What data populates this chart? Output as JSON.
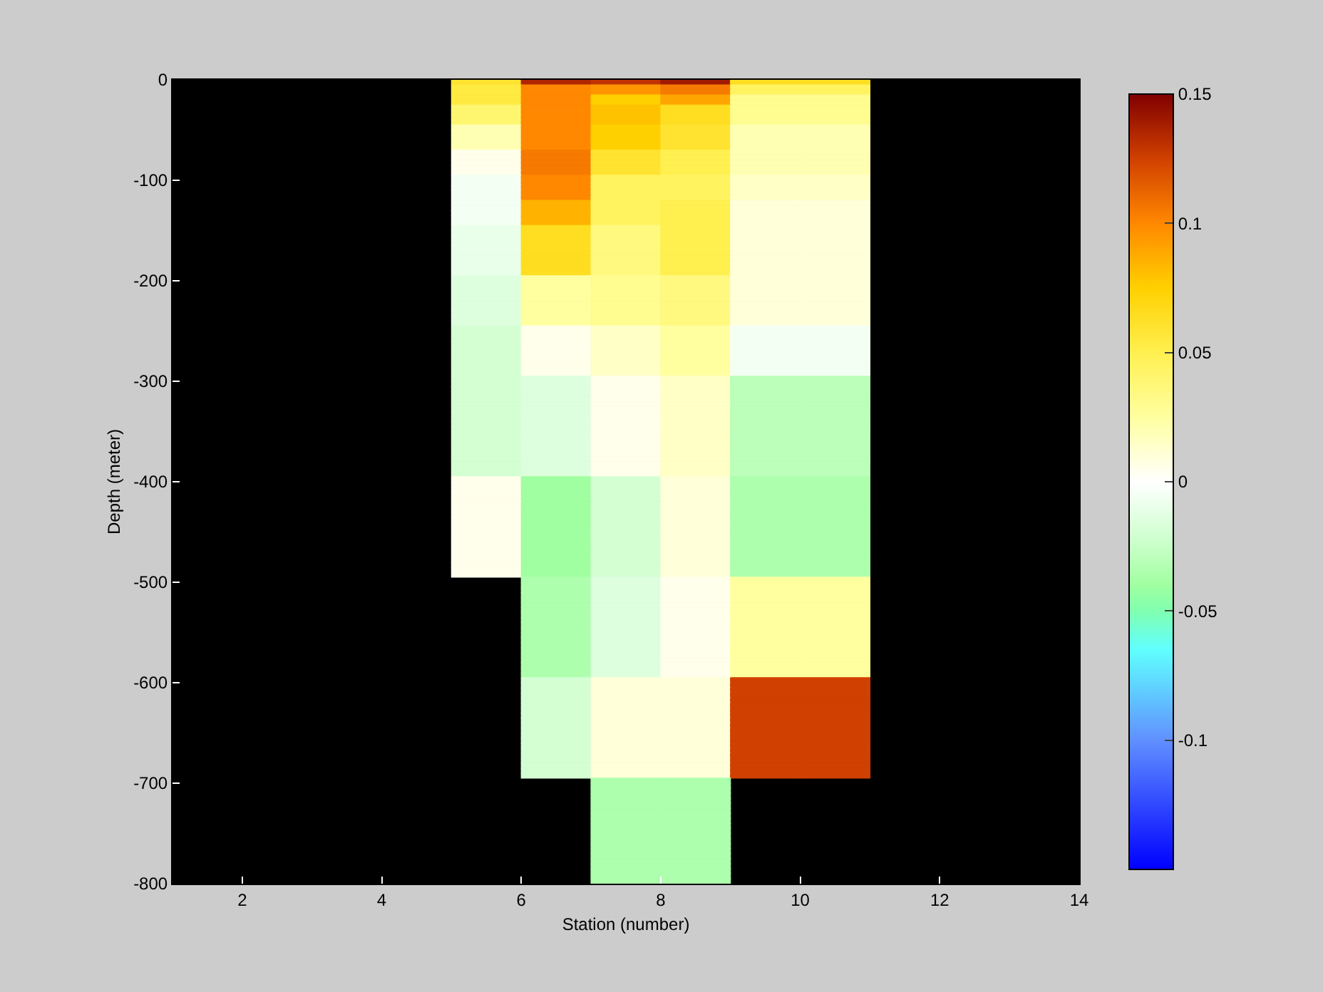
{
  "chart_data": {
    "type": "heatmap",
    "xlabel": "Station (number)",
    "ylabel": "Depth (meter)",
    "cells": [
      [
        null,
        null,
        null,
        null,
        0.06,
        0.135,
        0.13,
        0.14,
        0.065,
        0.065,
        null,
        null,
        null
      ],
      [
        null,
        null,
        null,
        null,
        0.055,
        0.1,
        0.095,
        0.105,
        0.045,
        0.045,
        null,
        null,
        null
      ],
      [
        null,
        null,
        null,
        null,
        0.055,
        0.1,
        0.095,
        0.105,
        0.045,
        0.045,
        null,
        null,
        null
      ],
      [
        null,
        null,
        null,
        null,
        0.055,
        0.1,
        0.075,
        0.09,
        0.03,
        0.03,
        null,
        null,
        null
      ],
      [
        null,
        null,
        null,
        null,
        0.055,
        0.1,
        0.075,
        0.09,
        0.03,
        0.03,
        null,
        null,
        null
      ],
      [
        null,
        null,
        null,
        null,
        0.04,
        0.1,
        0.08,
        0.065,
        0.03,
        0.03,
        null,
        null,
        null
      ],
      [
        null,
        null,
        null,
        null,
        0.04,
        0.1,
        0.08,
        0.065,
        0.03,
        0.03,
        null,
        null,
        null
      ],
      [
        null,
        null,
        null,
        null,
        0.04,
        0.1,
        0.08,
        0.065,
        0.03,
        0.03,
        null,
        null,
        null
      ],
      [
        null,
        null,
        null,
        null,
        0.04,
        0.1,
        0.08,
        0.065,
        0.03,
        0.03,
        null,
        null,
        null
      ],
      [
        null,
        null,
        null,
        null,
        0.02,
        0.1,
        0.075,
        0.06,
        0.02,
        0.02,
        null,
        null,
        null
      ],
      [
        null,
        null,
        null,
        null,
        0.02,
        0.1,
        0.075,
        0.06,
        0.02,
        0.02,
        null,
        null,
        null
      ],
      [
        null,
        null,
        null,
        null,
        0.02,
        0.1,
        0.075,
        0.06,
        0.02,
        0.02,
        null,
        null,
        null
      ],
      [
        null,
        null,
        null,
        null,
        0.02,
        0.1,
        0.075,
        0.06,
        0.02,
        0.02,
        null,
        null,
        null
      ],
      [
        null,
        null,
        null,
        null,
        0.02,
        0.1,
        0.075,
        0.06,
        0.02,
        0.02,
        null,
        null,
        null
      ],
      [
        null,
        null,
        null,
        null,
        0.005,
        0.105,
        0.06,
        0.05,
        0.02,
        0.02,
        null,
        null,
        null
      ],
      [
        null,
        null,
        null,
        null,
        0.005,
        0.105,
        0.06,
        0.05,
        0.02,
        0.02,
        null,
        null,
        null
      ],
      [
        null,
        null,
        null,
        null,
        0.005,
        0.105,
        0.06,
        0.05,
        0.02,
        0.02,
        null,
        null,
        null
      ],
      [
        null,
        null,
        null,
        null,
        0.005,
        0.105,
        0.06,
        0.05,
        0.02,
        0.02,
        null,
        null,
        null
      ],
      [
        null,
        null,
        null,
        null,
        0.005,
        0.105,
        0.06,
        0.05,
        0.02,
        0.02,
        null,
        null,
        null
      ],
      [
        null,
        null,
        null,
        null,
        -0.005,
        0.1,
        0.045,
        0.045,
        0.015,
        0.015,
        null,
        null,
        null
      ],
      [
        null,
        null,
        null,
        null,
        -0.005,
        0.1,
        0.045,
        0.045,
        0.015,
        0.015,
        null,
        null,
        null
      ],
      [
        null,
        null,
        null,
        null,
        -0.005,
        0.1,
        0.045,
        0.045,
        0.015,
        0.015,
        null,
        null,
        null
      ],
      [
        null,
        null,
        null,
        null,
        -0.005,
        0.1,
        0.045,
        0.045,
        0.015,
        0.015,
        null,
        null,
        null
      ],
      [
        null,
        null,
        null,
        null,
        -0.005,
        0.1,
        0.045,
        0.045,
        0.015,
        0.015,
        null,
        null,
        null
      ],
      [
        null,
        null,
        null,
        null,
        -0.005,
        0.085,
        0.045,
        0.05,
        0.01,
        0.01,
        null,
        null,
        null
      ],
      [
        null,
        null,
        null,
        null,
        -0.005,
        0.085,
        0.045,
        0.05,
        0.01,
        0.01,
        null,
        null,
        null
      ],
      [
        null,
        null,
        null,
        null,
        -0.005,
        0.085,
        0.045,
        0.05,
        0.01,
        0.01,
        null,
        null,
        null
      ],
      [
        null,
        null,
        null,
        null,
        -0.005,
        0.085,
        0.045,
        0.05,
        0.01,
        0.01,
        null,
        null,
        null
      ],
      [
        null,
        null,
        null,
        null,
        -0.005,
        0.085,
        0.045,
        0.05,
        0.01,
        0.01,
        null,
        null,
        null
      ],
      [
        null,
        null,
        null,
        null,
        -0.01,
        0.065,
        0.035,
        0.05,
        0.01,
        0.01,
        null,
        null,
        null
      ],
      [
        null,
        null,
        null,
        null,
        -0.01,
        0.065,
        0.035,
        0.05,
        0.01,
        0.01,
        null,
        null,
        null
      ],
      [
        null,
        null,
        null,
        null,
        -0.01,
        0.065,
        0.035,
        0.05,
        0.01,
        0.01,
        null,
        null,
        null
      ],
      [
        null,
        null,
        null,
        null,
        -0.01,
        0.065,
        0.035,
        0.05,
        0.01,
        0.01,
        null,
        null,
        null
      ],
      [
        null,
        null,
        null,
        null,
        -0.01,
        0.065,
        0.035,
        0.05,
        0.01,
        0.01,
        null,
        null,
        null
      ],
      [
        null,
        null,
        null,
        null,
        -0.01,
        0.065,
        0.035,
        0.05,
        0.01,
        0.01,
        null,
        null,
        null
      ],
      [
        null,
        null,
        null,
        null,
        -0.01,
        0.065,
        0.035,
        0.05,
        0.01,
        0.01,
        null,
        null,
        null
      ],
      [
        null,
        null,
        null,
        null,
        -0.01,
        0.065,
        0.035,
        0.05,
        0.01,
        0.01,
        null,
        null,
        null
      ],
      [
        null,
        null,
        null,
        null,
        -0.01,
        0.065,
        0.035,
        0.05,
        0.01,
        0.01,
        null,
        null,
        null
      ],
      [
        null,
        null,
        null,
        null,
        -0.01,
        0.065,
        0.035,
        0.05,
        0.01,
        0.01,
        null,
        null,
        null
      ],
      [
        null,
        null,
        null,
        null,
        -0.015,
        0.025,
        0.03,
        0.035,
        0.01,
        0.01,
        null,
        null,
        null
      ],
      [
        null,
        null,
        null,
        null,
        -0.015,
        0.025,
        0.03,
        0.035,
        0.01,
        0.01,
        null,
        null,
        null
      ],
      [
        null,
        null,
        null,
        null,
        -0.015,
        0.025,
        0.03,
        0.035,
        0.01,
        0.01,
        null,
        null,
        null
      ],
      [
        null,
        null,
        null,
        null,
        -0.015,
        0.025,
        0.03,
        0.035,
        0.01,
        0.01,
        null,
        null,
        null
      ],
      [
        null,
        null,
        null,
        null,
        -0.015,
        0.025,
        0.03,
        0.035,
        0.01,
        0.01,
        null,
        null,
        null
      ],
      [
        null,
        null,
        null,
        null,
        -0.015,
        0.025,
        0.03,
        0.035,
        0.01,
        0.01,
        null,
        null,
        null
      ],
      [
        null,
        null,
        null,
        null,
        -0.015,
        0.025,
        0.03,
        0.035,
        0.01,
        0.01,
        null,
        null,
        null
      ],
      [
        null,
        null,
        null,
        null,
        -0.015,
        0.025,
        0.03,
        0.035,
        0.01,
        0.01,
        null,
        null,
        null
      ],
      [
        null,
        null,
        null,
        null,
        -0.015,
        0.025,
        0.03,
        0.035,
        0.01,
        0.01,
        null,
        null,
        null
      ],
      [
        null,
        null,
        null,
        null,
        -0.015,
        0.025,
        0.03,
        0.035,
        0.01,
        0.01,
        null,
        null,
        null
      ],
      [
        null,
        null,
        null,
        null,
        -0.02,
        0.005,
        0.015,
        0.025,
        -0.005,
        -0.005,
        null,
        null,
        null
      ],
      [
        null,
        null,
        null,
        null,
        -0.02,
        0.005,
        0.015,
        0.025,
        -0.005,
        -0.005,
        null,
        null,
        null
      ],
      [
        null,
        null,
        null,
        null,
        -0.02,
        0.005,
        0.015,
        0.025,
        -0.005,
        -0.005,
        null,
        null,
        null
      ],
      [
        null,
        null,
        null,
        null,
        -0.02,
        0.005,
        0.015,
        0.025,
        -0.005,
        -0.005,
        null,
        null,
        null
      ],
      [
        null,
        null,
        null,
        null,
        -0.02,
        0.005,
        0.015,
        0.025,
        -0.005,
        -0.005,
        null,
        null,
        null
      ],
      [
        null,
        null,
        null,
        null,
        -0.02,
        0.005,
        0.015,
        0.025,
        -0.005,
        -0.005,
        null,
        null,
        null
      ],
      [
        null,
        null,
        null,
        null,
        -0.02,
        0.005,
        0.015,
        0.025,
        -0.005,
        -0.005,
        null,
        null,
        null
      ],
      [
        null,
        null,
        null,
        null,
        -0.02,
        0.005,
        0.015,
        0.025,
        -0.005,
        -0.005,
        null,
        null,
        null
      ],
      [
        null,
        null,
        null,
        null,
        -0.02,
        0.005,
        0.015,
        0.025,
        -0.005,
        -0.005,
        null,
        null,
        null
      ],
      [
        null,
        null,
        null,
        null,
        -0.02,
        0.005,
        0.015,
        0.025,
        -0.005,
        -0.005,
        null,
        null,
        null
      ],
      [
        null,
        null,
        null,
        null,
        -0.02,
        -0.015,
        0.005,
        0.015,
        -0.03,
        -0.03,
        null,
        null,
        null
      ],
      [
        null,
        null,
        null,
        null,
        -0.02,
        -0.015,
        0.005,
        0.015,
        -0.03,
        -0.03,
        null,
        null,
        null
      ],
      [
        null,
        null,
        null,
        null,
        -0.02,
        -0.015,
        0.005,
        0.015,
        -0.03,
        -0.03,
        null,
        null,
        null
      ],
      [
        null,
        null,
        null,
        null,
        -0.02,
        -0.015,
        0.005,
        0.015,
        -0.03,
        -0.03,
        null,
        null,
        null
      ],
      [
        null,
        null,
        null,
        null,
        -0.02,
        -0.015,
        0.005,
        0.015,
        -0.03,
        -0.03,
        null,
        null,
        null
      ],
      [
        null,
        null,
        null,
        null,
        -0.02,
        -0.015,
        0.005,
        0.015,
        -0.03,
        -0.03,
        null,
        null,
        null
      ],
      [
        null,
        null,
        null,
        null,
        -0.02,
        -0.015,
        0.005,
        0.015,
        -0.03,
        -0.03,
        null,
        null,
        null
      ],
      [
        null,
        null,
        null,
        null,
        -0.02,
        -0.015,
        0.005,
        0.015,
        -0.03,
        -0.03,
        null,
        null,
        null
      ],
      [
        null,
        null,
        null,
        null,
        -0.02,
        -0.015,
        0.005,
        0.015,
        -0.03,
        -0.03,
        null,
        null,
        null
      ],
      [
        null,
        null,
        null,
        null,
        -0.02,
        -0.015,
        0.005,
        0.015,
        -0.03,
        -0.03,
        null,
        null,
        null
      ],
      [
        null,
        null,
        null,
        null,
        -0.02,
        -0.015,
        0.005,
        0.015,
        -0.03,
        -0.03,
        null,
        null,
        null
      ],
      [
        null,
        null,
        null,
        null,
        -0.02,
        -0.015,
        0.005,
        0.015,
        -0.03,
        -0.03,
        null,
        null,
        null
      ],
      [
        null,
        null,
        null,
        null,
        -0.02,
        -0.015,
        0.005,
        0.015,
        -0.03,
        -0.03,
        null,
        null,
        null
      ],
      [
        null,
        null,
        null,
        null,
        -0.02,
        -0.015,
        0.005,
        0.015,
        -0.03,
        -0.03,
        null,
        null,
        null
      ],
      [
        null,
        null,
        null,
        null,
        -0.02,
        -0.015,
        0.005,
        0.015,
        -0.03,
        -0.03,
        null,
        null,
        null
      ],
      [
        null,
        null,
        null,
        null,
        -0.02,
        -0.015,
        0.005,
        0.015,
        -0.03,
        -0.03,
        null,
        null,
        null
      ],
      [
        null,
        null,
        null,
        null,
        -0.02,
        -0.015,
        0.005,
        0.015,
        -0.03,
        -0.03,
        null,
        null,
        null
      ],
      [
        null,
        null,
        null,
        null,
        -0.02,
        -0.015,
        0.005,
        0.015,
        -0.03,
        -0.03,
        null,
        null,
        null
      ],
      [
        null,
        null,
        null,
        null,
        -0.02,
        -0.015,
        0.005,
        0.015,
        -0.03,
        -0.03,
        null,
        null,
        null
      ],
      [
        null,
        null,
        null,
        null,
        -0.02,
        -0.015,
        0.005,
        0.015,
        -0.03,
        -0.03,
        null,
        null,
        null
      ],
      [
        null,
        null,
        null,
        null,
        0.005,
        -0.04,
        -0.02,
        0.01,
        -0.035,
        -0.035,
        null,
        null,
        null
      ],
      [
        null,
        null,
        null,
        null,
        0.005,
        -0.04,
        -0.02,
        0.01,
        -0.035,
        -0.035,
        null,
        null,
        null
      ],
      [
        null,
        null,
        null,
        null,
        0.005,
        -0.04,
        -0.02,
        0.01,
        -0.035,
        -0.035,
        null,
        null,
        null
      ],
      [
        null,
        null,
        null,
        null,
        0.005,
        -0.04,
        -0.02,
        0.01,
        -0.035,
        -0.035,
        null,
        null,
        null
      ],
      [
        null,
        null,
        null,
        null,
        0.005,
        -0.04,
        -0.02,
        0.01,
        -0.035,
        -0.035,
        null,
        null,
        null
      ],
      [
        null,
        null,
        null,
        null,
        0.005,
        -0.04,
        -0.02,
        0.01,
        -0.035,
        -0.035,
        null,
        null,
        null
      ],
      [
        null,
        null,
        null,
        null,
        0.005,
        -0.04,
        -0.02,
        0.01,
        -0.035,
        -0.035,
        null,
        null,
        null
      ],
      [
        null,
        null,
        null,
        null,
        0.005,
        -0.04,
        -0.02,
        0.01,
        -0.035,
        -0.035,
        null,
        null,
        null
      ],
      [
        null,
        null,
        null,
        null,
        0.005,
        -0.04,
        -0.02,
        0.01,
        -0.035,
        -0.035,
        null,
        null,
        null
      ],
      [
        null,
        null,
        null,
        null,
        0.005,
        -0.04,
        -0.02,
        0.01,
        -0.035,
        -0.035,
        null,
        null,
        null
      ],
      [
        null,
        null,
        null,
        null,
        0.005,
        -0.04,
        -0.02,
        0.01,
        -0.035,
        -0.035,
        null,
        null,
        null
      ],
      [
        null,
        null,
        null,
        null,
        0.005,
        -0.04,
        -0.02,
        0.01,
        -0.035,
        -0.035,
        null,
        null,
        null
      ],
      [
        null,
        null,
        null,
        null,
        0.005,
        -0.04,
        -0.02,
        0.01,
        -0.035,
        -0.035,
        null,
        null,
        null
      ],
      [
        null,
        null,
        null,
        null,
        0.005,
        -0.04,
        -0.02,
        0.01,
        -0.035,
        -0.035,
        null,
        null,
        null
      ],
      [
        null,
        null,
        null,
        null,
        0.005,
        -0.04,
        -0.02,
        0.01,
        -0.035,
        -0.035,
        null,
        null,
        null
      ],
      [
        null,
        null,
        null,
        null,
        0.005,
        -0.04,
        -0.02,
        0.01,
        -0.035,
        -0.035,
        null,
        null,
        null
      ],
      [
        null,
        null,
        null,
        null,
        0.005,
        -0.04,
        -0.02,
        0.01,
        -0.035,
        -0.035,
        null,
        null,
        null
      ],
      [
        null,
        null,
        null,
        null,
        0.005,
        -0.04,
        -0.02,
        0.01,
        -0.035,
        -0.035,
        null,
        null,
        null
      ],
      [
        null,
        null,
        null,
        null,
        0.005,
        -0.04,
        -0.02,
        0.01,
        -0.035,
        -0.035,
        null,
        null,
        null
      ],
      [
        null,
        null,
        null,
        null,
        0.005,
        -0.04,
        -0.02,
        0.01,
        -0.035,
        -0.035,
        null,
        null,
        null
      ],
      [
        null,
        null,
        null,
        null,
        null,
        -0.035,
        -0.015,
        0.005,
        0.025,
        0.025,
        null,
        null,
        null
      ],
      [
        null,
        null,
        null,
        null,
        null,
        -0.035,
        -0.015,
        0.005,
        0.025,
        0.025,
        null,
        null,
        null
      ],
      [
        null,
        null,
        null,
        null,
        null,
        -0.035,
        -0.015,
        0.005,
        0.025,
        0.025,
        null,
        null,
        null
      ],
      [
        null,
        null,
        null,
        null,
        null,
        -0.035,
        -0.015,
        0.005,
        0.025,
        0.025,
        null,
        null,
        null
      ],
      [
        null,
        null,
        null,
        null,
        null,
        -0.035,
        -0.015,
        0.005,
        0.025,
        0.025,
        null,
        null,
        null
      ],
      [
        null,
        null,
        null,
        null,
        null,
        -0.035,
        -0.015,
        0.005,
        0.025,
        0.025,
        null,
        null,
        null
      ],
      [
        null,
        null,
        null,
        null,
        null,
        -0.035,
        -0.015,
        0.005,
        0.025,
        0.025,
        null,
        null,
        null
      ],
      [
        null,
        null,
        null,
        null,
        null,
        -0.035,
        -0.015,
        0.005,
        0.025,
        0.025,
        null,
        null,
        null
      ],
      [
        null,
        null,
        null,
        null,
        null,
        -0.035,
        -0.015,
        0.005,
        0.025,
        0.025,
        null,
        null,
        null
      ],
      [
        null,
        null,
        null,
        null,
        null,
        -0.035,
        -0.015,
        0.005,
        0.025,
        0.025,
        null,
        null,
        null
      ],
      [
        null,
        null,
        null,
        null,
        null,
        -0.035,
        -0.015,
        0.005,
        0.025,
        0.025,
        null,
        null,
        null
      ],
      [
        null,
        null,
        null,
        null,
        null,
        -0.035,
        -0.015,
        0.005,
        0.025,
        0.025,
        null,
        null,
        null
      ],
      [
        null,
        null,
        null,
        null,
        null,
        -0.035,
        -0.015,
        0.005,
        0.025,
        0.025,
        null,
        null,
        null
      ],
      [
        null,
        null,
        null,
        null,
        null,
        -0.035,
        -0.015,
        0.005,
        0.025,
        0.025,
        null,
        null,
        null
      ],
      [
        null,
        null,
        null,
        null,
        null,
        -0.035,
        -0.015,
        0.005,
        0.025,
        0.025,
        null,
        null,
        null
      ],
      [
        null,
        null,
        null,
        null,
        null,
        -0.035,
        -0.015,
        0.005,
        0.025,
        0.025,
        null,
        null,
        null
      ],
      [
        null,
        null,
        null,
        null,
        null,
        -0.035,
        -0.015,
        0.005,
        0.025,
        0.025,
        null,
        null,
        null
      ],
      [
        null,
        null,
        null,
        null,
        null,
        -0.035,
        -0.015,
        0.005,
        0.025,
        0.025,
        null,
        null,
        null
      ],
      [
        null,
        null,
        null,
        null,
        null,
        -0.035,
        -0.015,
        0.005,
        0.025,
        0.025,
        null,
        null,
        null
      ],
      [
        null,
        null,
        null,
        null,
        null,
        -0.035,
        -0.015,
        0.005,
        0.025,
        0.025,
        null,
        null,
        null
      ],
      [
        null,
        null,
        null,
        null,
        null,
        -0.02,
        0.01,
        0.01,
        0.125,
        0.125,
        null,
        null,
        null
      ],
      [
        null,
        null,
        null,
        null,
        null,
        -0.02,
        0.01,
        0.01,
        0.125,
        0.125,
        null,
        null,
        null
      ],
      [
        null,
        null,
        null,
        null,
        null,
        -0.02,
        0.01,
        0.01,
        0.125,
        0.125,
        null,
        null,
        null
      ],
      [
        null,
        null,
        null,
        null,
        null,
        -0.02,
        0.01,
        0.01,
        0.125,
        0.125,
        null,
        null,
        null
      ],
      [
        null,
        null,
        null,
        null,
        null,
        -0.02,
        0.01,
        0.01,
        0.125,
        0.125,
        null,
        null,
        null
      ],
      [
        null,
        null,
        null,
        null,
        null,
        -0.02,
        0.01,
        0.01,
        0.125,
        0.125,
        null,
        null,
        null
      ],
      [
        null,
        null,
        null,
        null,
        null,
        -0.02,
        0.01,
        0.01,
        0.125,
        0.125,
        null,
        null,
        null
      ],
      [
        null,
        null,
        null,
        null,
        null,
        -0.02,
        0.01,
        0.01,
        0.125,
        0.125,
        null,
        null,
        null
      ],
      [
        null,
        null,
        null,
        null,
        null,
        -0.02,
        0.01,
        0.01,
        0.125,
        0.125,
        null,
        null,
        null
      ],
      [
        null,
        null,
        null,
        null,
        null,
        -0.02,
        0.01,
        0.01,
        0.125,
        0.125,
        null,
        null,
        null
      ],
      [
        null,
        null,
        null,
        null,
        null,
        -0.02,
        0.01,
        0.01,
        0.125,
        0.125,
        null,
        null,
        null
      ],
      [
        null,
        null,
        null,
        null,
        null,
        -0.02,
        0.01,
        0.01,
        0.125,
        0.125,
        null,
        null,
        null
      ],
      [
        null,
        null,
        null,
        null,
        null,
        -0.02,
        0.01,
        0.01,
        0.125,
        0.125,
        null,
        null,
        null
      ],
      [
        null,
        null,
        null,
        null,
        null,
        -0.02,
        0.01,
        0.01,
        0.125,
        0.125,
        null,
        null,
        null
      ],
      [
        null,
        null,
        null,
        null,
        null,
        -0.02,
        0.01,
        0.01,
        0.125,
        0.125,
        null,
        null,
        null
      ],
      [
        null,
        null,
        null,
        null,
        null,
        -0.02,
        0.01,
        0.01,
        0.125,
        0.125,
        null,
        null,
        null
      ],
      [
        null,
        null,
        null,
        null,
        null,
        -0.02,
        0.01,
        0.01,
        0.125,
        0.125,
        null,
        null,
        null
      ],
      [
        null,
        null,
        null,
        null,
        null,
        -0.02,
        0.01,
        0.01,
        0.125,
        0.125,
        null,
        null,
        null
      ],
      [
        null,
        null,
        null,
        null,
        null,
        -0.02,
        0.01,
        0.01,
        0.125,
        0.125,
        null,
        null,
        null
      ],
      [
        null,
        null,
        null,
        null,
        null,
        -0.02,
        0.01,
        0.01,
        0.125,
        0.125,
        null,
        null,
        null
      ],
      [
        null,
        null,
        null,
        null,
        null,
        null,
        -0.035,
        -0.035,
        null,
        null,
        null,
        null,
        null
      ],
      [
        null,
        null,
        null,
        null,
        null,
        null,
        -0.035,
        -0.035,
        null,
        null,
        null,
        null,
        null
      ],
      [
        null,
        null,
        null,
        null,
        null,
        null,
        -0.035,
        -0.035,
        null,
        null,
        null,
        null,
        null
      ],
      [
        null,
        null,
        null,
        null,
        null,
        null,
        -0.035,
        -0.035,
        null,
        null,
        null,
        null,
        null
      ],
      [
        null,
        null,
        null,
        null,
        null,
        null,
        -0.035,
        -0.035,
        null,
        null,
        null,
        null,
        null
      ],
      [
        null,
        null,
        null,
        null,
        null,
        null,
        -0.035,
        -0.035,
        null,
        null,
        null,
        null,
        null
      ],
      [
        null,
        null,
        null,
        null,
        null,
        null,
        -0.035,
        -0.035,
        null,
        null,
        null,
        null,
        null
      ],
      [
        null,
        null,
        null,
        null,
        null,
        null,
        -0.035,
        -0.035,
        null,
        null,
        null,
        null,
        null
      ],
      [
        null,
        null,
        null,
        null,
        null,
        null,
        -0.035,
        -0.035,
        null,
        null,
        null,
        null,
        null
      ],
      [
        null,
        null,
        null,
        null,
        null,
        null,
        -0.035,
        -0.035,
        null,
        null,
        null,
        null,
        null
      ],
      [
        null,
        null,
        null,
        null,
        null,
        null,
        -0.035,
        -0.035,
        null,
        null,
        null,
        null,
        null
      ],
      [
        null,
        null,
        null,
        null,
        null,
        null,
        -0.035,
        -0.035,
        null,
        null,
        null,
        null,
        null
      ],
      [
        null,
        null,
        null,
        null,
        null,
        null,
        -0.035,
        -0.035,
        null,
        null,
        null,
        null,
        null
      ],
      [
        null,
        null,
        null,
        null,
        null,
        null,
        -0.035,
        -0.035,
        null,
        null,
        null,
        null,
        null
      ],
      [
        null,
        null,
        null,
        null,
        null,
        null,
        -0.035,
        -0.035,
        null,
        null,
        null,
        null,
        null
      ],
      [
        null,
        null,
        null,
        null,
        null,
        null,
        -0.035,
        -0.035,
        null,
        null,
        null,
        null,
        null
      ],
      [
        null,
        null,
        null,
        null,
        null,
        null,
        -0.035,
        -0.035,
        null,
        null,
        null,
        null,
        null
      ],
      [
        null,
        null,
        null,
        null,
        null,
        null,
        -0.035,
        -0.035,
        null,
        null,
        null,
        null,
        null
      ],
      [
        null,
        null,
        null,
        null,
        null,
        null,
        -0.035,
        -0.035,
        null,
        null,
        null,
        null,
        null
      ],
      [
        null,
        null,
        null,
        null,
        null,
        null,
        -0.035,
        -0.035,
        null,
        null,
        null,
        null,
        null
      ],
      [
        null,
        null,
        null,
        null,
        null,
        null,
        -0.035,
        -0.035,
        null,
        null,
        null,
        null,
        null
      ]
    ],
    "xlim": [
      1,
      14
    ],
    "xticks": [
      2,
      4,
      6,
      8,
      10,
      12,
      14
    ],
    "ylim": [
      -800,
      0
    ],
    "yticks": [
      0,
      -100,
      -200,
      -300,
      -400,
      -500,
      -600,
      -700,
      -800
    ],
    "clim": [
      -0.15,
      0.15
    ],
    "cticks": [
      -0.1,
      -0.05,
      0,
      0.05,
      0.1,
      0.15
    ]
  }
}
